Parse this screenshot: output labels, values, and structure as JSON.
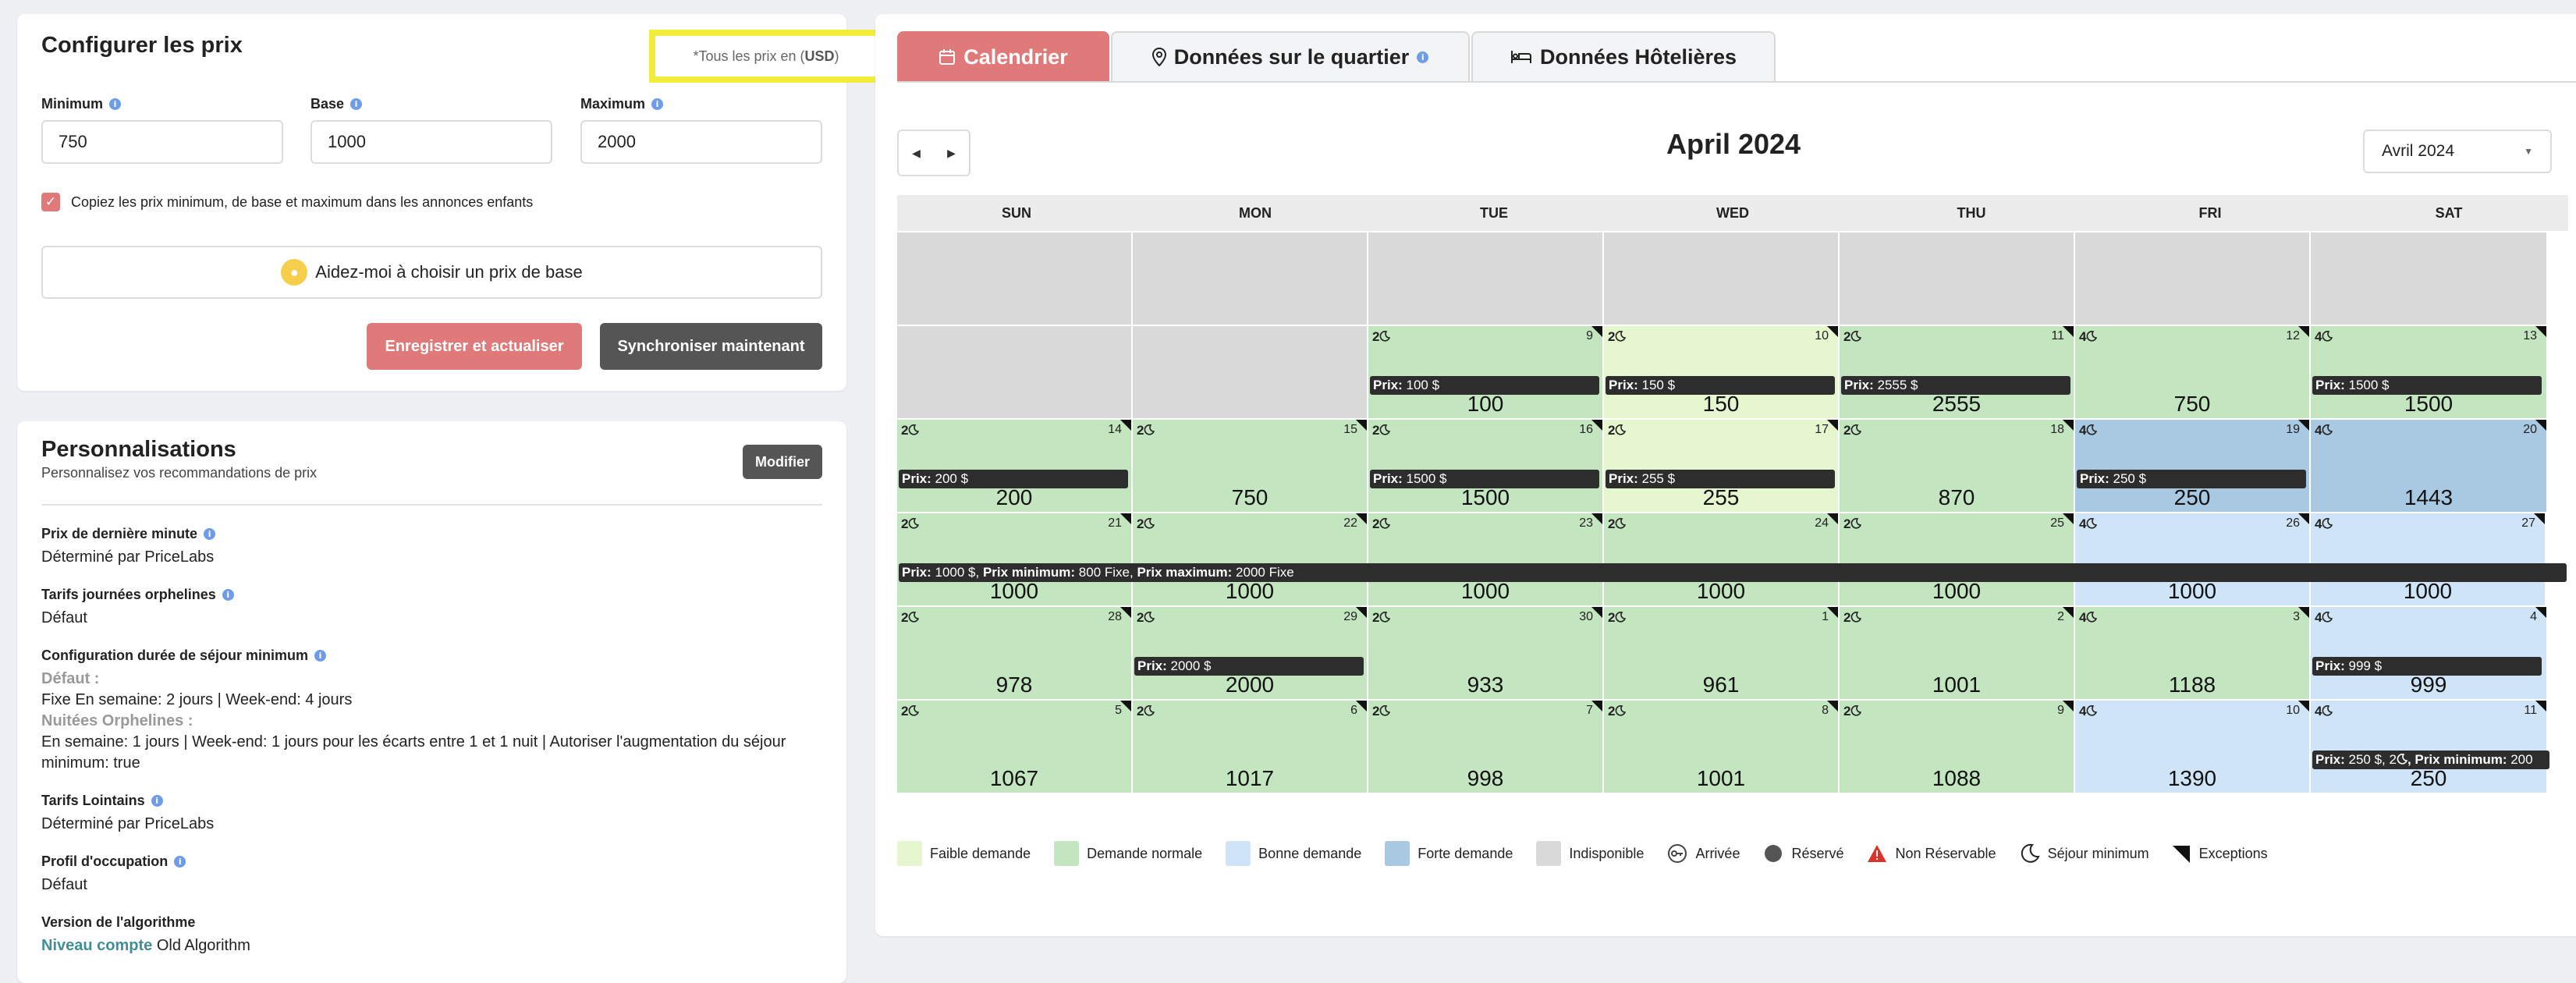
{
  "config": {
    "title": "Configurer les prix",
    "currency_note_prefix": "*Tous les prix en (",
    "currency": "USD",
    "currency_note_suffix": ")",
    "minimum_label": "Minimum",
    "minimum_value": "750",
    "base_label": "Base",
    "base_value": "1000",
    "maximum_label": "Maximum",
    "maximum_value": "2000",
    "copy_checkbox_label": "Copiez les prix minimum, de base et maximum dans les annonces enfants",
    "help_button": "Aidez-moi à choisir un prix de base",
    "save_button": "Enregistrer et actualiser",
    "sync_button": "Synchroniser maintenant"
  },
  "perso": {
    "title": "Personnalisations",
    "subtitle": "Personnalisez vos recommandations de prix",
    "edit_button": "Modifier",
    "last_minute_label": "Prix de dernière minute",
    "last_minute_value": "Déterminé par PriceLabs",
    "orphan_label": "Tarifs journées orphelines",
    "orphan_value": "Défaut",
    "minstay_label": "Configuration durée de séjour minimum",
    "minstay_default_label": "Défaut :",
    "minstay_default_value": "Fixe En semaine: 2 jours | Week-end: 4 jours",
    "minstay_orphan_label": "Nuitées Orphelines :",
    "minstay_orphan_value": "En semaine: 1 jours | Week-end: 1 jours pour les écarts entre 1 et 1 nuit | Autoriser l'augmentation du séjour minimum: true",
    "far_label": "Tarifs Lointains",
    "far_value": "Déterminé par PriceLabs",
    "occupancy_label": "Profil d'occupation",
    "occupancy_value": "Défaut",
    "algo_label": "Version de l'algorithme",
    "algo_link": "Niveau compte",
    "algo_value": "Old Algorithm"
  },
  "tabs": {
    "calendar": "Calendrier",
    "neighborhood": "Données sur le quartier",
    "hotel": "Données Hôtelières"
  },
  "calendar": {
    "month_title": "April 2024",
    "month_select": "Avril 2024",
    "days_of_week": [
      "SUN",
      "MON",
      "TUE",
      "WED",
      "THU",
      "FRI",
      "SAT"
    ],
    "weeks": [
      [
        {
          "status": "na"
        },
        {
          "status": "na"
        },
        {
          "status": "na"
        },
        {
          "status": "na"
        },
        {
          "status": "na"
        },
        {
          "status": "na"
        },
        {
          "status": "na"
        }
      ],
      [
        {
          "status": "na"
        },
        {
          "status": "na"
        },
        {
          "day": "9",
          "min": "2",
          "price": "100",
          "status": "normal",
          "ex": true,
          "bar_label": "Prix:",
          "bar_text": " 100 $"
        },
        {
          "day": "10",
          "min": "2",
          "price": "150",
          "status": "low",
          "ex": true,
          "bar_label": "Prix:",
          "bar_text": " 150 $"
        },
        {
          "day": "11",
          "min": "2",
          "price": "2555",
          "status": "normal",
          "ex": true,
          "bar_label": "Prix:",
          "bar_text": " 2555 $"
        },
        {
          "day": "12",
          "min": "4",
          "price": "750",
          "status": "normal",
          "ex": true
        },
        {
          "day": "13",
          "min": "4",
          "price": "1500",
          "status": "normal",
          "ex": true,
          "bar_label": "Prix:",
          "bar_text": " 1500 $"
        }
      ],
      [
        {
          "day": "14",
          "min": "2",
          "price": "200",
          "status": "normal",
          "ex": true,
          "bar_label": "Prix:",
          "bar_text": " 200 $"
        },
        {
          "day": "15",
          "min": "2",
          "price": "750",
          "status": "normal",
          "ex": true
        },
        {
          "day": "16",
          "min": "2",
          "price": "1500",
          "status": "normal",
          "ex": true,
          "bar_label": "Prix:",
          "bar_text": " 1500 $"
        },
        {
          "day": "17",
          "min": "2",
          "price": "255",
          "status": "low",
          "ex": true,
          "bar_label": "Prix:",
          "bar_text": " 255 $"
        },
        {
          "day": "18",
          "min": "2",
          "price": "870",
          "status": "normal",
          "ex": true
        },
        {
          "day": "19",
          "min": "4",
          "price": "250",
          "status": "high",
          "ex": true,
          "bar_label": "Prix:",
          "bar_text": " 250 $"
        },
        {
          "day": "20",
          "min": "4",
          "price": "1443",
          "status": "high",
          "ex": true
        }
      ],
      [
        {
          "day": "21",
          "min": "2",
          "price": "1000",
          "status": "normal",
          "ex": true
        },
        {
          "day": "22",
          "min": "2",
          "price": "1000",
          "status": "normal",
          "ex": true
        },
        {
          "day": "23",
          "min": "2",
          "price": "1000",
          "status": "normal",
          "ex": true
        },
        {
          "day": "24",
          "min": "2",
          "price": "1000",
          "status": "normal",
          "ex": true
        },
        {
          "day": "25",
          "min": "2",
          "price": "1000",
          "status": "normal",
          "ex": true
        },
        {
          "day": "26",
          "min": "4",
          "price": "1000",
          "status": "good",
          "ex": true
        },
        {
          "day": "27",
          "min": "4",
          "price": "1000",
          "status": "good",
          "ex": true
        }
      ],
      [
        {
          "day": "28",
          "min": "2",
          "price": "978",
          "status": "normal",
          "ex": true
        },
        {
          "day": "29",
          "min": "2",
          "price": "2000",
          "status": "normal",
          "ex": true,
          "bar_label": "Prix:",
          "bar_text": " 2000 $"
        },
        {
          "day": "30",
          "min": "2",
          "price": "933",
          "status": "normal",
          "ex": true
        },
        {
          "day": "1",
          "min": "2",
          "price": "961",
          "status": "normal",
          "ex": true
        },
        {
          "day": "2",
          "min": "2",
          "price": "1001",
          "status": "normal",
          "ex": true
        },
        {
          "day": "3",
          "min": "4",
          "price": "1188",
          "status": "normal",
          "ex": true
        },
        {
          "day": "4",
          "min": "4",
          "price": "999",
          "status": "good",
          "ex": true,
          "bar_label": "Prix:",
          "bar_text": " 999 $"
        }
      ],
      [
        {
          "day": "5",
          "min": "2",
          "price": "1067",
          "status": "normal",
          "ex": true
        },
        {
          "day": "6",
          "min": "2",
          "price": "1017",
          "status": "normal",
          "ex": true
        },
        {
          "day": "7",
          "min": "2",
          "price": "998",
          "status": "normal",
          "ex": true
        },
        {
          "day": "8",
          "min": "2",
          "price": "1001",
          "status": "normal",
          "ex": true
        },
        {
          "day": "9",
          "min": "2",
          "price": "1088",
          "status": "normal",
          "ex": true
        },
        {
          "day": "10",
          "min": "4",
          "price": "1390",
          "status": "good",
          "ex": true
        },
        {
          "day": "11",
          "min": "4",
          "price": "250",
          "status": "good",
          "ex": true,
          "bar_label": "Prix:",
          "bar_text": " 250 $, 2",
          "bar_moon": true,
          "bar_label2": ", Prix minimum:",
          "bar_text2": " 200"
        }
      ]
    ],
    "long_bar": {
      "prix_label": "Prix:",
      "prix_text": " 1000 $, ",
      "min_label": "Prix minimum:",
      "min_text": " 800 Fixe, ",
      "max_label": "Prix maximum:",
      "max_text": " 2000 Fixe"
    }
  },
  "legend": [
    {
      "label": "Faible demande",
      "kind": "swatch",
      "color": "#e6f6cf"
    },
    {
      "label": "Demande normale",
      "kind": "swatch",
      "color": "#c3e5bf"
    },
    {
      "label": "Bonne demande",
      "kind": "swatch",
      "color": "#cfe5f7"
    },
    {
      "label": "Forte demande",
      "kind": "swatch",
      "color": "#a9c8e1"
    },
    {
      "label": "Indisponible",
      "kind": "swatch",
      "color": "#d9d9d9"
    },
    {
      "label": "Arrivée",
      "kind": "key-icon"
    },
    {
      "label": "Réservé",
      "kind": "dot-icon"
    },
    {
      "label": "Non Réservable",
      "kind": "warning-icon"
    },
    {
      "label": "Séjour minimum",
      "kind": "moon-icon"
    },
    {
      "label": "Exceptions",
      "kind": "corner-icon"
    }
  ]
}
